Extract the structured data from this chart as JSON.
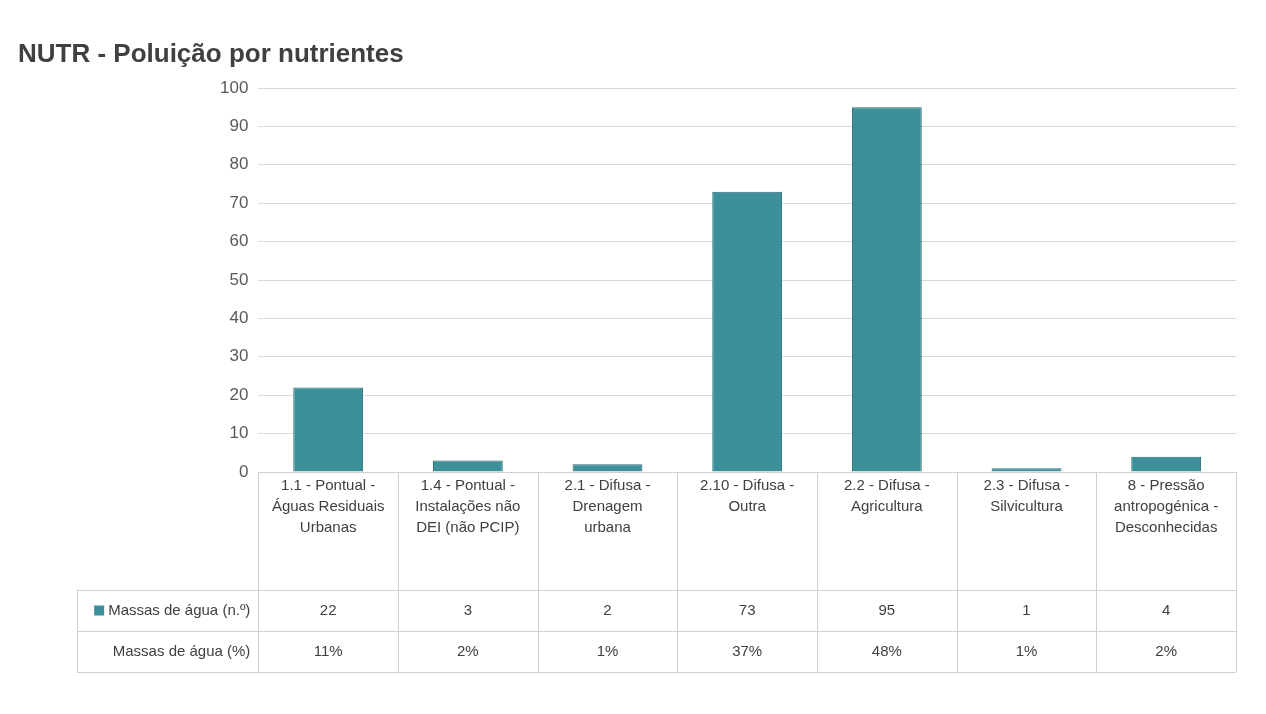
{
  "chart_data": {
    "type": "bar",
    "title": "NUTR - Poluição por nutrientes",
    "categories": [
      "1.1 - Pontual - Águas Residuais Urbanas",
      "1.4 - Pontual - Instalações não DEI (não PCIP)",
      "2.1 - Difusa - Drenagem urbana",
      "2.10 - Difusa - Outra",
      "2.2 - Difusa - Agricultura",
      "2.3 - Difusa - Silvicultura",
      "8 - Pressão antropogénica - Desconhecidas"
    ],
    "series": [
      {
        "name": "Massas de água (n.º)",
        "color": "#3d8f9a",
        "values": [
          22,
          3,
          2,
          73,
          95,
          1,
          4
        ]
      }
    ],
    "annotations": [
      "Massas de água (%)",
      "11%",
      "2%",
      "1%",
      "37%",
      "48%",
      "1%",
      "2%"
    ],
    "ylim": [
      0,
      100
    ],
    "yticks": [
      0,
      10,
      20,
      30,
      40,
      50,
      60,
      70,
      80,
      90,
      100
    ],
    "grid": "y",
    "data_labels": true,
    "legend": "bottom"
  }
}
